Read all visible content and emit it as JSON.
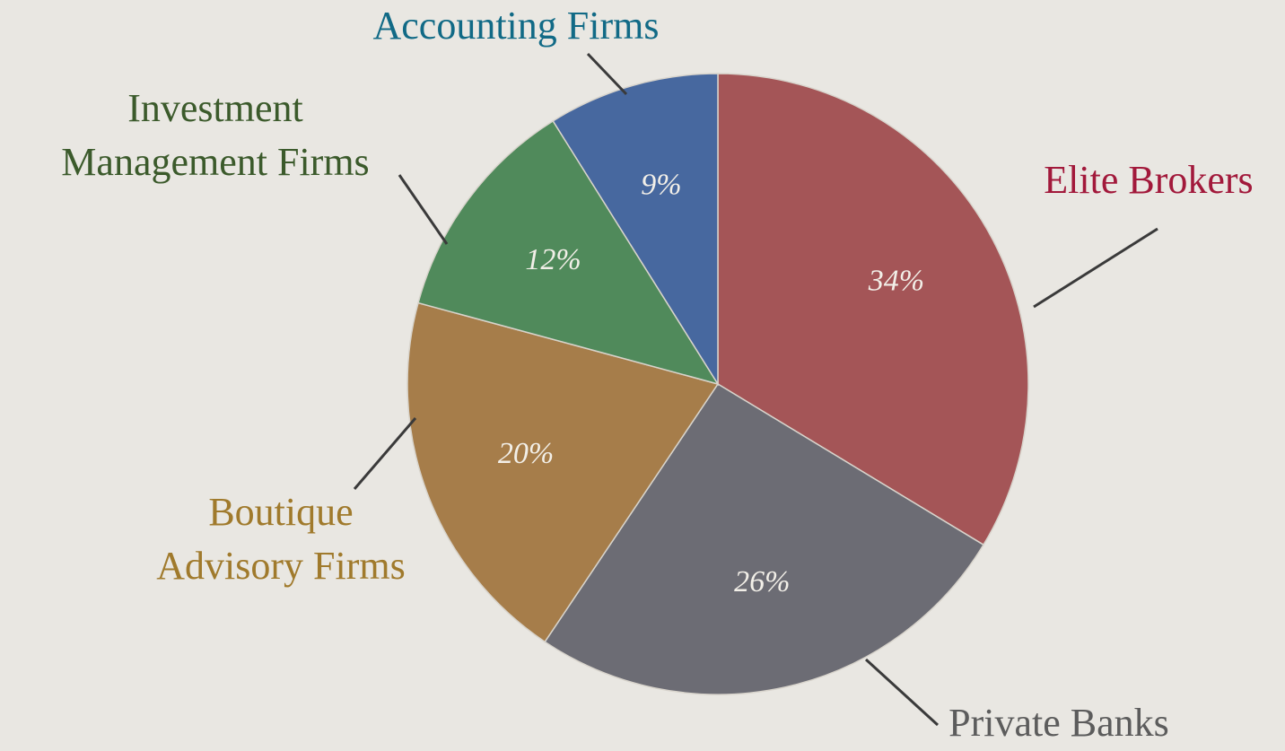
{
  "chart_data": {
    "type": "pie",
    "categories": [
      "Elite Brokers",
      "Private Banks",
      "Boutique Advisory Firms",
      "Investment Management Firms",
      "Accounting Firms"
    ],
    "values": [
      34,
      26,
      20,
      12,
      9
    ],
    "value_labels": [
      "34%",
      "26%",
      "20%",
      "12%",
      "9%"
    ],
    "colors": [
      "#a45557",
      "#6c6c74",
      "#a67d4a",
      "#508a5b",
      "#47689f"
    ],
    "label_colors": [
      "#a2193b",
      "#5c5c5c",
      "#a07a2c",
      "#3b5a2b",
      "#116a86"
    ]
  }
}
